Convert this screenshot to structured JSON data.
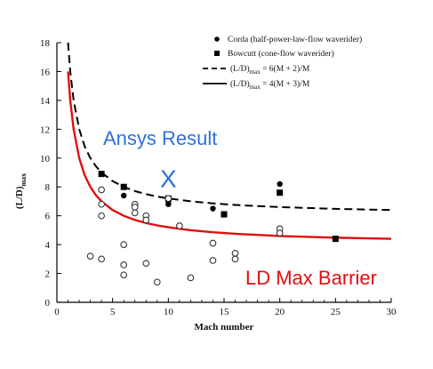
{
  "chart_data": {
    "type": "scatter",
    "xlabel": "Mach number",
    "ylabel_main": "(L/D)",
    "ylabel_sub": "max",
    "xlim": [
      0,
      30
    ],
    "ylim": [
      0,
      18
    ],
    "xticks": [
      0,
      5,
      10,
      15,
      20,
      25,
      30
    ],
    "yticks": [
      0,
      2,
      4,
      6,
      8,
      10,
      12,
      14,
      16,
      18
    ],
    "grid": false,
    "legend_position": "top-right",
    "legend": [
      {
        "marker": "filled-circle",
        "label": "Corda (half-power-law-flow waverider)"
      },
      {
        "marker": "filled-square",
        "label": "Bowcutt (cone-flow waverider)"
      },
      {
        "marker": "dashed-line",
        "label_main": "(L/D)",
        "label_sub": "max",
        "label_rest": " = 6(M + 2)/M"
      },
      {
        "marker": "solid-line",
        "label_main": "(L/D)",
        "label_sub": "max",
        "label_rest": " = 4(M + 3)/M"
      }
    ],
    "series": [
      {
        "name": "Corda (half-power-law-flow waverider)",
        "marker": "filled-circle",
        "points": [
          [
            6,
            7.4
          ],
          [
            10,
            7.0
          ],
          [
            10,
            6.8
          ],
          [
            14,
            6.5
          ],
          [
            20,
            8.2
          ]
        ]
      },
      {
        "name": "Bowcutt (cone-flow waverider)",
        "marker": "filled-square",
        "points": [
          [
            4,
            8.9
          ],
          [
            6,
            8.0
          ],
          [
            10,
            7.2
          ],
          [
            15,
            6.1
          ],
          [
            20,
            7.6
          ],
          [
            25,
            4.4
          ]
        ]
      },
      {
        "name": "other data",
        "marker": "open-circle",
        "points": [
          [
            3,
            3.2
          ],
          [
            4,
            7.8
          ],
          [
            4,
            6.8
          ],
          [
            4,
            6.0
          ],
          [
            4,
            3.0
          ],
          [
            6,
            4.0
          ],
          [
            6,
            2.6
          ],
          [
            6,
            1.9
          ],
          [
            7,
            6.8
          ],
          [
            7,
            6.6
          ],
          [
            7,
            6.2
          ],
          [
            8,
            6.0
          ],
          [
            8,
            5.7
          ],
          [
            8,
            2.7
          ],
          [
            9,
            1.4
          ],
          [
            10,
            7.2
          ],
          [
            11,
            5.3
          ],
          [
            12,
            1.7
          ],
          [
            14,
            4.1
          ],
          [
            14,
            2.9
          ],
          [
            16,
            3.4
          ],
          [
            16,
            3.0
          ],
          [
            20,
            5.1
          ],
          [
            20,
            4.8
          ]
        ]
      }
    ],
    "curves": [
      {
        "name": "(L/D)max = 6(M + 2)/M",
        "style": "dashed",
        "color": "#000000",
        "x": [
          1.0,
          1.2,
          1.5,
          2,
          2.5,
          3,
          3.5,
          4,
          5,
          6,
          7,
          8,
          9,
          10,
          12,
          14,
          16,
          18,
          20,
          22,
          25,
          28,
          30
        ],
        "y": [
          18.0,
          16.0,
          14.0,
          12.0,
          10.8,
          10.0,
          9.43,
          9.0,
          8.4,
          8.0,
          7.71,
          7.5,
          7.33,
          7.2,
          7.0,
          6.86,
          6.75,
          6.67,
          6.6,
          6.55,
          6.48,
          6.43,
          6.4
        ]
      },
      {
        "name": "(L/D)max = 4(M + 3)/M",
        "style": "solid",
        "color": "#e01010",
        "x": [
          1.0,
          1.2,
          1.5,
          2,
          2.5,
          3,
          3.5,
          4,
          5,
          6,
          7,
          8,
          9,
          10,
          12,
          14,
          16,
          18,
          20,
          22,
          25,
          28,
          30
        ],
        "y": [
          16.0,
          14.0,
          12.0,
          10.0,
          8.8,
          8.0,
          7.43,
          7.0,
          6.4,
          6.0,
          5.71,
          5.5,
          5.33,
          5.2,
          5.0,
          4.86,
          4.75,
          4.67,
          4.6,
          4.55,
          4.48,
          4.43,
          4.4
        ]
      }
    ],
    "annotations": [
      {
        "text": "Ansys Result",
        "color": "#2f6fdd"
      },
      {
        "text": "X",
        "color": "#2f6fdd",
        "x": 10.0,
        "y": 8.6
      },
      {
        "text": "LD Max Barrier",
        "color": "#e01010"
      }
    ]
  }
}
